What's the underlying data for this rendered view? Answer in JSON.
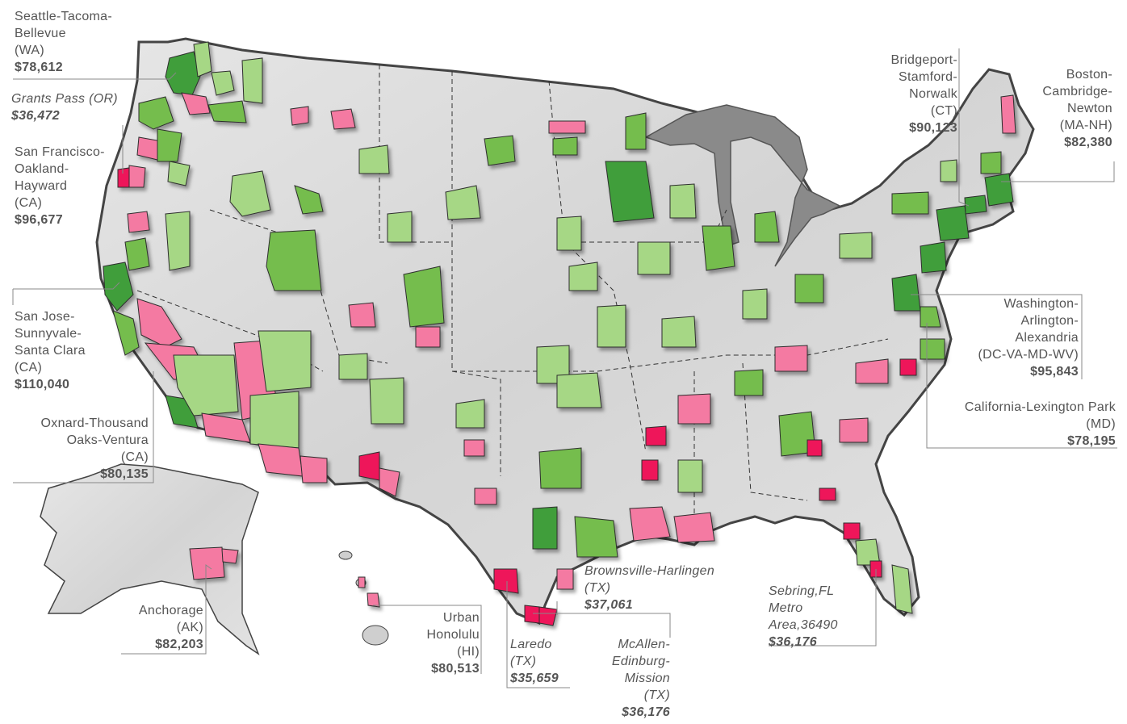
{
  "colors": {
    "high": "#3f9e3a",
    "upper_mid": "#74bd4e",
    "mid": "#a6d785",
    "low": "#f47aa2",
    "lowest": "#ee175a",
    "land": "#d9d9d9",
    "lakes": "#8a8a8a",
    "border": "#444444",
    "leader": "#888888"
  },
  "labels": {
    "seattle": {
      "name": "Seattle-Tacoma-\nBellevue\n(WA)",
      "value": "$78,612"
    },
    "grants_pass": {
      "name": "Grants Pass (OR)",
      "value": "$36,472"
    },
    "san_francisco": {
      "name": "San Francisco-\nOakland-\nHayward\n(CA)",
      "value": "$96,677"
    },
    "san_jose": {
      "name": "San Jose-\nSunnyvale-\nSanta Clara\n(CA)",
      "value": "$110,040"
    },
    "oxnard": {
      "name": "Oxnard-Thousand\nOaks-Ventura\n(CA)",
      "value": "$80,135"
    },
    "anchorage": {
      "name": "Anchorage\n(AK)",
      "value": "$82,203"
    },
    "honolulu": {
      "name": "Urban\nHonolulu\n(HI)",
      "value": "$80,513"
    },
    "laredo": {
      "name": "Laredo\n(TX)",
      "value": "$35,659"
    },
    "brownsville": {
      "name": "Brownsville-Harlingen\n(TX)",
      "value": "$37,061"
    },
    "mcallen": {
      "name": "McAllen-\nEdinburg-\nMission\n(TX)",
      "value": "$36,176"
    },
    "sebring": {
      "name": "Sebring,FL\nMetro\nArea,36490",
      "value": "$36,176"
    },
    "bridgeport": {
      "name": "Bridgeport-\nStamford-\nNorwalk\n(CT)",
      "value": "$90,123"
    },
    "boston": {
      "name": "Boston-\nCambridge-\nNewton\n(MA-NH)",
      "value": "$82,380"
    },
    "washington": {
      "name": "Washington-\nArlington-\nAlexandria\n(DC-VA-MD-WV)",
      "value": "$95,843"
    },
    "california_md": {
      "name": "California-Lexington Park\n(MD)",
      "value": "$78,195"
    }
  }
}
